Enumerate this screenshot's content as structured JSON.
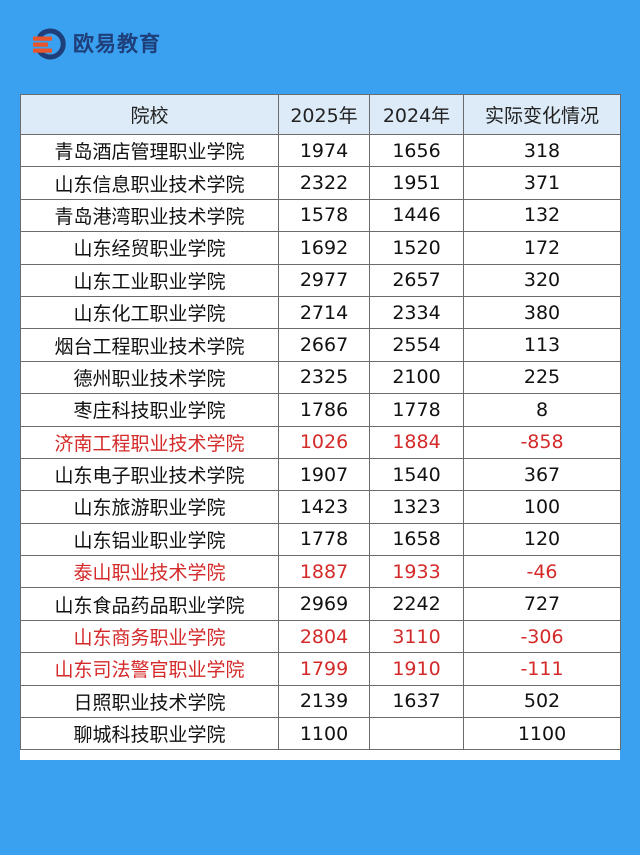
{
  "brand": {
    "name": "欧易教育",
    "icon": "brand-logo-icon",
    "colors": {
      "ring": "#1E3F7A",
      "bars": "#E8542C"
    }
  },
  "colors": {
    "background": "#3AA0F0",
    "header_bg": "#DCEBF7",
    "negative_text": "#D42A2A"
  },
  "table": {
    "headers": [
      "院校",
      "2025年",
      "2024年",
      "实际变化情况"
    ],
    "rows": [
      {
        "school": "青岛酒店管理职业学院",
        "y2025": "1974",
        "y2024": "1656",
        "change": "318",
        "highlight": false
      },
      {
        "school": "山东信息职业技术学院",
        "y2025": "2322",
        "y2024": "1951",
        "change": "371",
        "highlight": false
      },
      {
        "school": "青岛港湾职业技术学院",
        "y2025": "1578",
        "y2024": "1446",
        "change": "132",
        "highlight": false
      },
      {
        "school": "山东经贸职业学院",
        "y2025": "1692",
        "y2024": "1520",
        "change": "172",
        "highlight": false
      },
      {
        "school": "山东工业职业学院",
        "y2025": "2977",
        "y2024": "2657",
        "change": "320",
        "highlight": false
      },
      {
        "school": "山东化工职业学院",
        "y2025": "2714",
        "y2024": "2334",
        "change": "380",
        "highlight": false
      },
      {
        "school": "烟台工程职业技术学院",
        "y2025": "2667",
        "y2024": "2554",
        "change": "113",
        "highlight": false
      },
      {
        "school": "德州职业技术学院",
        "y2025": "2325",
        "y2024": "2100",
        "change": "225",
        "highlight": false
      },
      {
        "school": "枣庄科技职业学院",
        "y2025": "1786",
        "y2024": "1778",
        "change": "8",
        "highlight": false
      },
      {
        "school": "济南工程职业技术学院",
        "y2025": "1026",
        "y2024": "1884",
        "change": "-858",
        "highlight": true
      },
      {
        "school": "山东电子职业技术学院",
        "y2025": "1907",
        "y2024": "1540",
        "change": "367",
        "highlight": false
      },
      {
        "school": "山东旅游职业学院",
        "y2025": "1423",
        "y2024": "1323",
        "change": "100",
        "highlight": false
      },
      {
        "school": "山东铝业职业学院",
        "y2025": "1778",
        "y2024": "1658",
        "change": "120",
        "highlight": false
      },
      {
        "school": "泰山职业技术学院",
        "y2025": "1887",
        "y2024": "1933",
        "change": "-46",
        "highlight": true
      },
      {
        "school": "山东食品药品职业学院",
        "y2025": "2969",
        "y2024": "2242",
        "change": "727",
        "highlight": false
      },
      {
        "school": "山东商务职业学院",
        "y2025": "2804",
        "y2024": "3110",
        "change": "-306",
        "highlight": true
      },
      {
        "school": "山东司法警官职业学院",
        "y2025": "1799",
        "y2024": "1910",
        "change": "-111",
        "highlight": true
      },
      {
        "school": "日照职业技术学院",
        "y2025": "2139",
        "y2024": "1637",
        "change": "502",
        "highlight": false
      },
      {
        "school": "聊城科技职业学院",
        "y2025": "1100",
        "y2024": "",
        "change": "1100",
        "highlight": false
      }
    ]
  }
}
